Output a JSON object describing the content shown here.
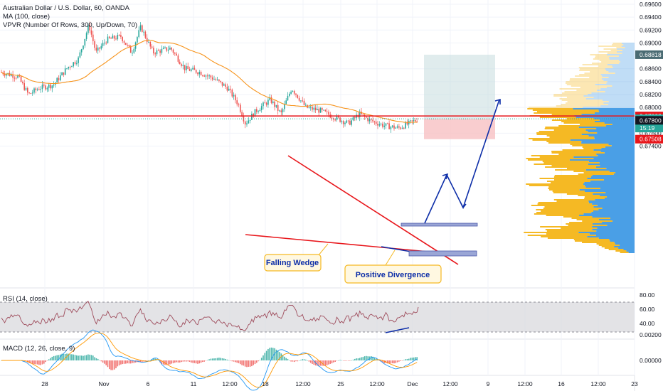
{
  "header": {
    "title": "Australian Dollar / U.S. Dollar, 60, OANDA",
    "indicator_1": "MA (100, close)",
    "indicator_2": "VPVR (Number Of Rows, 300, Up/Down, 70)"
  },
  "colors": {
    "up": "#26a69a",
    "down": "#ef5350",
    "ma": "#f7931a",
    "resistance": "#e8161b",
    "wedge": "#e8161b",
    "projection": "#0d2ea8",
    "vp_up": "#f5b924",
    "vp_down": "#4a9fe6",
    "rsi": "#9e4b5b",
    "macd": "#2196f3",
    "signal": "#ff9800"
  },
  "chart_data": [
    {
      "type": "candlestick",
      "title": "Australian Dollar / U.S. Dollar, 60, OANDA",
      "ylim": [
        0.673,
        0.696
      ],
      "yticks": [
        "0.69600",
        "0.69400",
        "0.69200",
        "0.69000",
        "0.68600",
        "0.68400",
        "0.68200",
        "0.68000",
        "0.67600",
        "0.67400"
      ],
      "xticks": [
        "28",
        "Nov",
        "6",
        "11",
        "12:00",
        "18",
        "12:00",
        "25",
        "12:00",
        "Dec",
        "12:00",
        "9",
        "12:00",
        "16",
        "12:00",
        "23"
      ],
      "ma_period": 100,
      "series_summary": {
        "start_close": 0.6855,
        "peak_high": 0.693,
        "last_close": 0.67824,
        "recent_low": 0.6766
      },
      "price_labels": [
        {
          "value": "0.68818",
          "role": "target"
        },
        {
          "value": "0.67868",
          "role": "resistance"
        },
        {
          "value": "0.67824",
          "role": "last price"
        },
        {
          "value": "15:19",
          "role": "countdown"
        },
        {
          "value": "0.67800",
          "role": "crosshair"
        },
        {
          "value": "0.67508",
          "role": "stop"
        }
      ],
      "horizontal_lines": [
        {
          "value": 0.67868,
          "label": "resistance"
        },
        {
          "value": 0.67824,
          "label": "last price"
        }
      ],
      "position": {
        "entry": 0.67824,
        "target": 0.68818,
        "stop": 0.67508
      }
    },
    {
      "type": "line",
      "title": "RSI (14, close)",
      "ylim": [
        25,
        85
      ],
      "yticks": [
        "80.00",
        "60.00",
        "40.00"
      ],
      "bands": [
        70,
        30
      ],
      "last_value": 63
    },
    {
      "type": "bar",
      "title": "MACD (12, 26, close, 9)",
      "yticks": [
        "0.00200",
        "0.00000"
      ]
    }
  ],
  "annotations": {
    "falling_wedge": "Falling Wedge",
    "positive_divergence": "Positive Divergence"
  }
}
